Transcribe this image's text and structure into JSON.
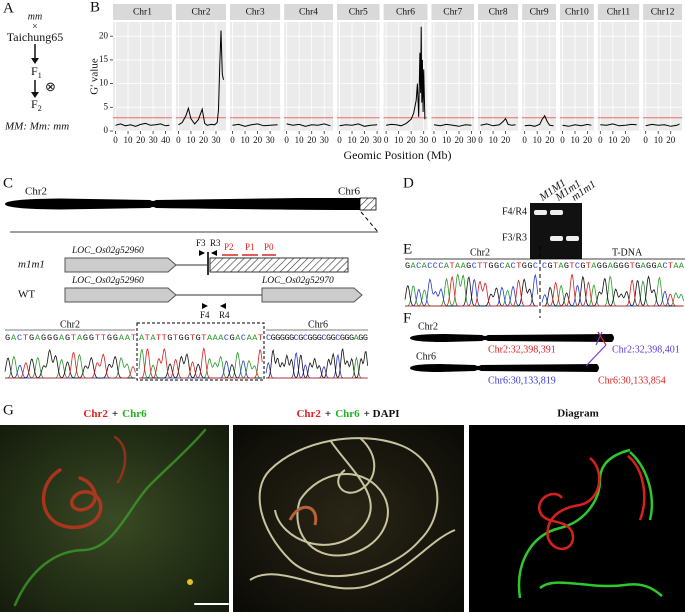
{
  "panel_a": {
    "label": "A",
    "parent": "mm",
    "cross": "×",
    "variety": "Taichung65",
    "f1": "F",
    "f1_sub": "1",
    "selfing": "⊗",
    "f2": "F",
    "f2_sub": "2",
    "ratio": "MM: Mm: mm"
  },
  "chart_data": {
    "type": "line",
    "label": "B",
    "ylabel": "G' value",
    "xlabel": "Geomic Position (Mb)",
    "ylim": [
      0,
      23
    ],
    "yticks": [
      0,
      5,
      10,
      15,
      20
    ],
    "threshold": 2.8,
    "threshold_color": "#ee6a6a",
    "line_color": "#000000",
    "grid": true,
    "facets": [
      {
        "name": "Chr1",
        "xlim": [
          -2,
          45
        ],
        "xticks": [
          0,
          10,
          20,
          30,
          40
        ],
        "x": [
          0,
          4,
          8,
          12,
          16,
          20,
          24,
          28,
          32,
          36,
          40,
          43
        ],
        "values": [
          1.2,
          1.5,
          1.1,
          1.3,
          1.0,
          1.4,
          1.6,
          1.2,
          1.3,
          1.5,
          1.1,
          1.2
        ]
      },
      {
        "name": "Chr2",
        "xlim": [
          -2,
          38
        ],
        "xticks": [
          0,
          10,
          20,
          30
        ],
        "x": [
          0,
          3,
          6,
          8,
          10,
          13,
          16,
          19,
          21,
          23,
          26,
          29,
          31,
          32,
          33,
          34,
          35,
          36
        ],
        "values": [
          1.3,
          1.8,
          3.2,
          4.8,
          2.6,
          1.5,
          2.4,
          4.6,
          1.6,
          1.2,
          1.4,
          1.3,
          1.8,
          4.5,
          13.5,
          21.2,
          12.0,
          10.8
        ]
      },
      {
        "name": "Chr3",
        "xlim": [
          -2,
          38
        ],
        "xticks": [
          0,
          10,
          20,
          30
        ],
        "x": [
          0,
          5,
          10,
          15,
          20,
          25,
          30,
          36
        ],
        "values": [
          1.2,
          1.4,
          1.0,
          1.3,
          1.5,
          1.1,
          1.2,
          1.3
        ]
      },
      {
        "name": "Chr4",
        "xlim": [
          -2,
          37
        ],
        "xticks": [
          0,
          10,
          20,
          30
        ],
        "x": [
          0,
          5,
          10,
          15,
          20,
          25,
          30,
          35
        ],
        "values": [
          1.5,
          1.2,
          1.4,
          1.0,
          1.3,
          1.2,
          1.5,
          1.1
        ]
      },
      {
        "name": "Chr5",
        "xlim": [
          -2,
          32
        ],
        "xticks": [
          0,
          10,
          20,
          30
        ],
        "x": [
          0,
          5,
          10,
          15,
          20,
          25,
          30
        ],
        "values": [
          1.1,
          1.3,
          1.2,
          1.5,
          1.0,
          1.2,
          1.3
        ]
      },
      {
        "name": "Chr6",
        "xlim": [
          -2,
          33
        ],
        "xticks": [
          0,
          10,
          20,
          30
        ],
        "x": [
          0,
          4,
          8,
          12,
          16,
          20,
          22,
          24,
          25,
          26,
          27,
          27.5,
          28,
          28.5,
          29,
          29.5,
          30,
          31
        ],
        "values": [
          1.2,
          1.4,
          1.3,
          1.1,
          1.6,
          2.5,
          3.8,
          6.5,
          10,
          3,
          16.5,
          8,
          22,
          6,
          15,
          4,
          13,
          2.5
        ]
      },
      {
        "name": "Chr7",
        "xlim": [
          -2,
          32
        ],
        "xticks": [
          0,
          10,
          20,
          30
        ],
        "x": [
          0,
          5,
          10,
          15,
          20,
          25,
          30
        ],
        "values": [
          1.3,
          1.1,
          1.4,
          1.2,
          1.0,
          1.3,
          1.2
        ]
      },
      {
        "name": "Chr8",
        "xlim": [
          -2,
          30
        ],
        "xticks": [
          0,
          10,
          20
        ],
        "x": [
          0,
          5,
          10,
          15,
          18,
          20,
          22,
          25,
          28
        ],
        "values": [
          1.2,
          1.5,
          1.1,
          1.3,
          2.0,
          2.6,
          1.4,
          1.2,
          1.3
        ]
      },
      {
        "name": "Chr9",
        "xlim": [
          -2,
          25
        ],
        "xticks": [
          0,
          10,
          20
        ],
        "x": [
          0,
          4,
          8,
          12,
          14,
          16,
          18,
          20,
          23
        ],
        "values": [
          1.1,
          1.2,
          1.0,
          1.4,
          2.5,
          3.2,
          2.0,
          1.2,
          1.1
        ]
      },
      {
        "name": "Chr10",
        "xlim": [
          -2,
          25
        ],
        "xticks": [
          0,
          10,
          20
        ],
        "x": [
          0,
          5,
          10,
          15,
          20,
          23
        ],
        "values": [
          1.2,
          1.0,
          1.3,
          1.1,
          1.4,
          1.2
        ]
      },
      {
        "name": "Chr11",
        "xlim": [
          -2,
          31
        ],
        "xticks": [
          0,
          10,
          20
        ],
        "x": [
          0,
          5,
          10,
          15,
          20,
          25,
          29
        ],
        "values": [
          1.3,
          1.2,
          1.5,
          1.1,
          1.2,
          1.4,
          1.3
        ]
      },
      {
        "name": "Chr12",
        "xlim": [
          -2,
          29
        ],
        "xticks": [
          0,
          10,
          20
        ],
        "x": [
          0,
          5,
          10,
          15,
          20,
          25,
          27
        ],
        "values": [
          1.1,
          1.4,
          1.2,
          1.3,
          1.0,
          1.2,
          1.5
        ]
      }
    ]
  },
  "panel_c": {
    "label": "C",
    "chr_left": "Chr2",
    "chr_right": "Chr6",
    "mutant": "m1m1",
    "wild_type": "WT",
    "gene_mutant": "LOC_Os02g52960",
    "gene_wt_1": "LOC_Os02g52960",
    "gene_wt_2": "LOC_Os02g52970",
    "primers_mutant": [
      "F3",
      "R3"
    ],
    "probes": [
      "P2",
      "P1",
      "P0"
    ],
    "primers_wt": [
      "F4",
      "R4"
    ],
    "seq_label_left": "Chr2",
    "seq_label_right": "Chr6",
    "sequence": [
      "GACTGAGGGAGTAGGTTGGAAT",
      "ATATTGTGGTGTAAACGACAAT",
      "CGGGGGCGCGGGCGGCGGGAGG"
    ]
  },
  "panel_d": {
    "label": "D",
    "lanes": [
      "M1M1",
      "M1m1",
      "m1m1"
    ],
    "rows": [
      "F4/R4",
      "F3/R3"
    ]
  },
  "panel_e": {
    "label": "E",
    "left": "Chr2",
    "right": "T-DNA",
    "sequence": [
      "GACACCCATAAGCTTGGCACTGGC",
      "CGTAGTCGTAGGAGGGTGAGGACTAA"
    ]
  },
  "panel_f": {
    "label": "F",
    "chr_top": "Chr2",
    "chr_bottom": "Chr6",
    "sites": [
      "Chr2:32,398,391",
      "Chr2:32,398,401",
      "Chr6:30,133,819",
      "Chr6:30,133,854"
    ]
  },
  "panel_g": {
    "label": "G",
    "title_1": [
      "Chr2",
      "+",
      "Chr6"
    ],
    "title_2": [
      "Chr2",
      "+",
      "Chr6",
      "+ DAPI"
    ],
    "title_3": "Diagram"
  }
}
